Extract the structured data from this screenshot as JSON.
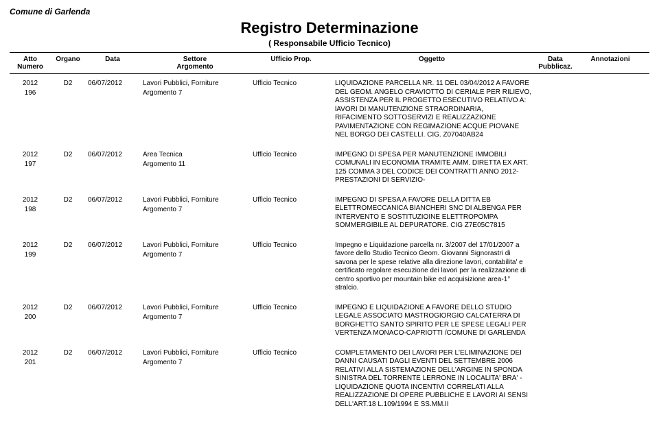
{
  "header": {
    "municipality": "Comune di Garlenda",
    "title": "Registro Determinazione",
    "subtitle": "( Responsabile Ufficio Tecnico)"
  },
  "columns": {
    "atto": {
      "line1": "Atto",
      "line2": "Numero"
    },
    "organo": {
      "line1": "Organo"
    },
    "data": {
      "line1": "Data"
    },
    "settore": {
      "line1": "Settore",
      "line2": "Argomento"
    },
    "ufficio": {
      "line1": "Ufficio Prop."
    },
    "oggetto": {
      "line1": "Oggetto"
    },
    "pubblicaz": {
      "line1": "Data",
      "line2": "Pubblicaz."
    },
    "annotazioni": {
      "line1": "Annotazioni"
    }
  },
  "rows": [
    {
      "anno": "2012",
      "numero": "196",
      "organo": "D2",
      "data": "06/07/2012",
      "settore": "Lavori Pubblici, Forniture",
      "argomento": "Argomento 7",
      "ufficio": "Ufficio Tecnico",
      "oggetto": "LIQUIDAZIONE PARCELLA NR. 11 DEL 03/04/2012 A FAVORE DEL GEOM. ANGELO CRAVIOTTO DI CERIALE PER RILIEVO, ASSISTENZA PER IL PROGETTO ESECUTIVO RELATIVO A: lAVORI DI MANUTENZIONE STRAORDINARIA, RIFACIMENTO SOTTOSERVIZI E REALIZZAZIONE PAVIMENTAZIONE CON REGIMAZIONE ACQUE PIOVANE NEL BORGO DEI CASTELLI. CIG. Z07040AB24"
    },
    {
      "anno": "2012",
      "numero": "197",
      "organo": "D2",
      "data": "06/07/2012",
      "settore": "Area Tecnica",
      "argomento": "Argomento 11",
      "ufficio": "Ufficio Tecnico",
      "oggetto": "IMPEGNO DI SPESA PER MANUTENZIONE IMMOBILI COMUNALI IN ECONOMIA TRAMITE AMM. DIRETTA EX ART. 125 COMMA 3 DEL CODICE DEI CONTRATTI ANNO 2012-PRESTAZIONI DI SERVIZIO-"
    },
    {
      "anno": "2012",
      "numero": "198",
      "organo": "D2",
      "data": "06/07/2012",
      "settore": "Lavori Pubblici, Forniture",
      "argomento": "Argomento 7",
      "ufficio": "Ufficio Tecnico",
      "oggetto": "IMPEGNO DI SPESA A FAVORE DELLA DITTA EB ELETTROMECCANICA BIANCHERI SNC DI ALBENGA PER INTERVENTO E SOSTITUZIOINE ELETTROPOMPA SOMMERGIBILE AL DEPURATORE. CIG Z7E05C7815"
    },
    {
      "anno": "2012",
      "numero": "199",
      "organo": "D2",
      "data": "06/07/2012",
      "settore": "Lavori Pubblici, Forniture",
      "argomento": "Argomento 7",
      "ufficio": "Ufficio Tecnico",
      "oggetto": "Impegno e  Liquidazione parcella nr. 3/2007 del 17/01/2007 a favore dello Studio Tecnico Geom. Giovanni Signorastri di savona per le spese relative alla direzione lavori, contabilita' e certificato regolare esecuzione dei lavori per la realizzazione di centro sportivo per mountain bike ed acquisizione area-1° stralcio."
    },
    {
      "anno": "2012",
      "numero": "200",
      "organo": "D2",
      "data": "06/07/2012",
      "settore": "Lavori Pubblici, Forniture",
      "argomento": "Argomento 7",
      "ufficio": "Ufficio Tecnico",
      "oggetto": "IMPEGNO E LIQUIDAZIONE A FAVORE DELLO STUDIO LEGALE ASSOCIATO MASTROGIORGIO CALCATERRA DI BORGHETTO SANTO SPIRITO PER LE SPESE LEGALI PER VERTENZA MONACO-CAPRIOTTI /COMUNE DI GARLENDA"
    },
    {
      "anno": "2012",
      "numero": "201",
      "organo": "D2",
      "data": "06/07/2012",
      "settore": "Lavori Pubblici, Forniture",
      "argomento": "Argomento 7",
      "ufficio": "Ufficio Tecnico",
      "oggetto": "COMPLETAMENTO DEI LAVORI PER L'ELIMINAZIONE DEI DANNI CAUSATI DAGLI EVENTI DEL SETTEMBRE 2006 RELATIVI ALLA SISTEMAZIONE DELL'ARGINE IN SPONDA SINISTRA DEL TORRENTE LERRONE IN LOCALITA' BRA' - LIQUIDAZIONE QUOTA  INCENTIVI CORRELATI ALLA REALIZZAZIONE DI OPERE PUBBLICHE E LAVORI AI SENSI DELL'ART.18 L.109/1994 E SS.MM.II"
    }
  ]
}
